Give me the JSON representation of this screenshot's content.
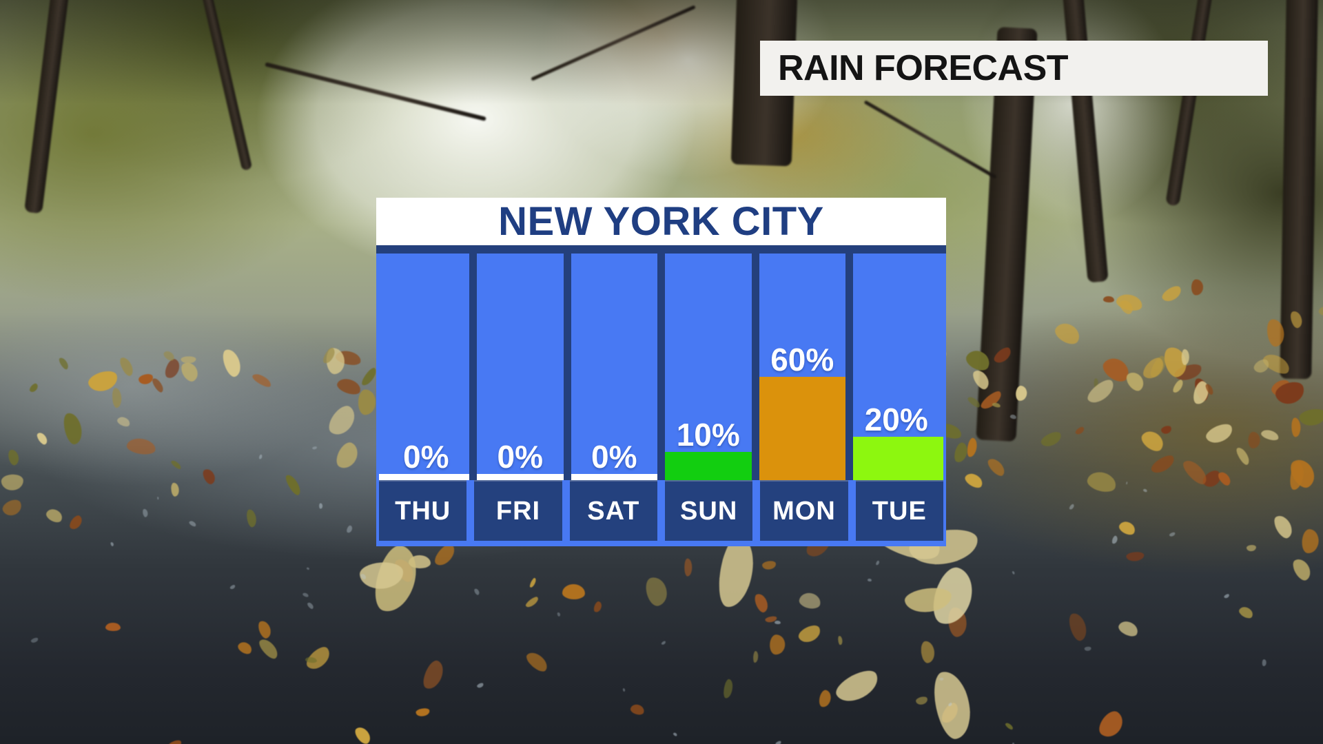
{
  "banner": {
    "title": "RAIN FORECAST"
  },
  "panel": {
    "city": "NEW YORK CITY"
  },
  "colors": {
    "banner_bg": "#f2f1ee",
    "banner_text": "#141414",
    "panel_blue": "#4879f3",
    "navy": "#24407c",
    "day_navy": "#24417e",
    "title_blue": "#1f3e82",
    "label_white": "#ffffff"
  },
  "chart_data": {
    "type": "bar",
    "title": "NEW YORK CITY",
    "subtitle": "RAIN FORECAST",
    "unit": "%",
    "categories": [
      "THU",
      "FRI",
      "SAT",
      "SUN",
      "MON",
      "TUE"
    ],
    "values": [
      0,
      0,
      0,
      10,
      60,
      20
    ],
    "labels": [
      "0%",
      "0%",
      "0%",
      "10%",
      "60%",
      "20%"
    ],
    "bar_colors": [
      "#ffffff",
      "#ffffff",
      "#ffffff",
      "#12ce10",
      "#db920c",
      "#8df70f"
    ],
    "ylim": [
      0,
      100
    ],
    "grid": false,
    "legend": "none",
    "orientation": "vertical",
    "value_label_position": "above-bar"
  }
}
